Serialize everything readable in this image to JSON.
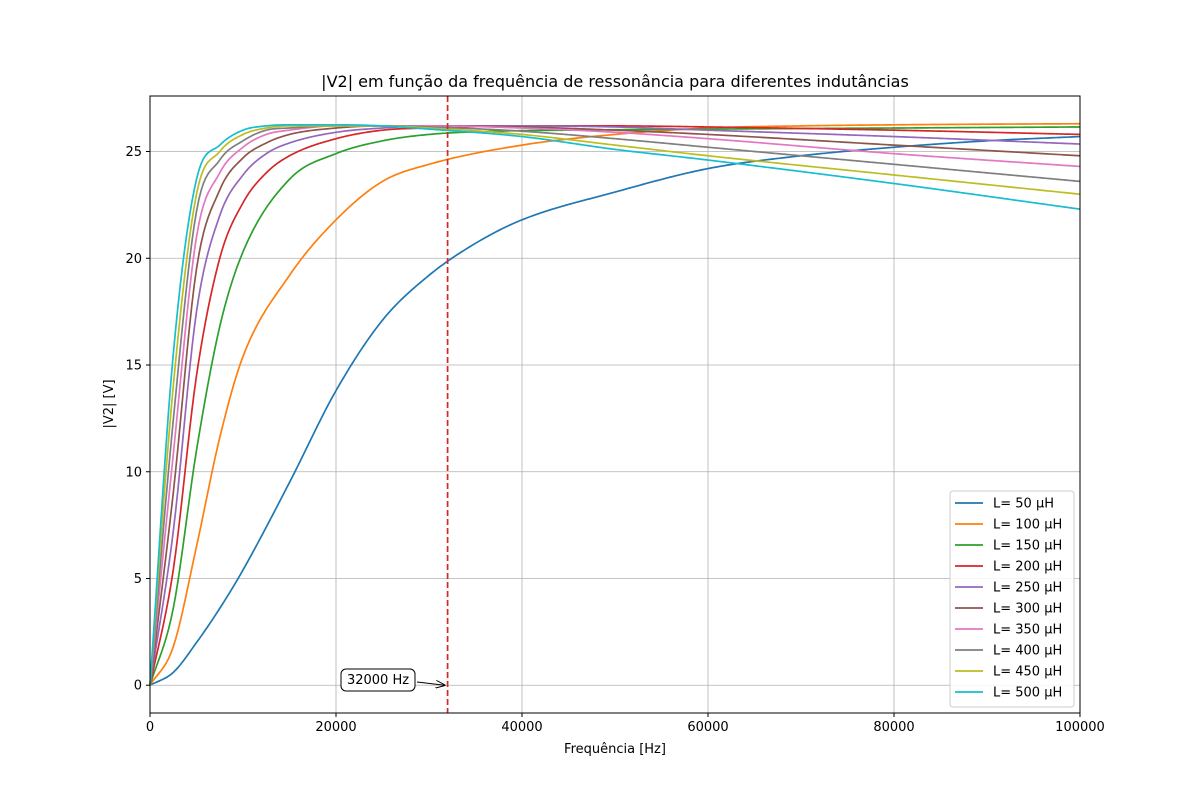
{
  "chart_data": {
    "type": "line",
    "title": "|V2| em função da frequência de ressonância para diferentes indutâncias",
    "xlabel": "Frequência [Hz]",
    "ylabel": "|V2| [V]",
    "xlim": [
      0,
      100000
    ],
    "ylim": [
      -1.3,
      27.6
    ],
    "xticks": [
      0,
      20000,
      40000,
      60000,
      80000,
      100000
    ],
    "xtick_labels": [
      "0",
      "20000",
      "40000",
      "60000",
      "80000",
      "100000"
    ],
    "yticks": [
      0,
      5,
      10,
      15,
      20,
      25
    ],
    "ytick_labels": [
      "0",
      "5",
      "10",
      "15",
      "20",
      "25"
    ],
    "grid": true,
    "legend_position": "lower-right",
    "vline": {
      "x": 32000,
      "color": "#d62728",
      "style": "dashed"
    },
    "annotation": {
      "text": "32000 Hz",
      "target": [
        32000,
        0
      ]
    },
    "series": [
      {
        "name": "L= 50 µH",
        "color": "#1f77b4",
        "x": [
          0,
          2500,
          5000,
          7500,
          10000,
          15000,
          20000,
          25000,
          30000,
          35000,
          40000,
          50000,
          60000,
          70000,
          80000,
          90000,
          100000
        ],
        "y": [
          0,
          0.6,
          2.0,
          3.6,
          5.4,
          9.5,
          13.8,
          17.1,
          19.2,
          20.7,
          21.8,
          23.1,
          24.2,
          24.8,
          25.2,
          25.5,
          25.7
        ]
      },
      {
        "name": "L= 100 µH",
        "color": "#ff7f0e",
        "x": [
          0,
          2500,
          5000,
          7500,
          10000,
          15000,
          20000,
          25000,
          30000,
          40000,
          50000,
          60000,
          70000,
          80000,
          90000,
          100000
        ],
        "y": [
          0,
          1.8,
          6.5,
          11.6,
          15.4,
          19.2,
          21.8,
          23.6,
          24.4,
          25.3,
          25.8,
          26.1,
          26.2,
          26.25,
          26.28,
          26.3
        ]
      },
      {
        "name": "L= 150 µH",
        "color": "#2ca02c",
        "x": [
          0,
          2500,
          5000,
          7500,
          10000,
          15000,
          20000,
          25000,
          30000,
          37000,
          45000,
          60000,
          80000,
          100000
        ],
        "y": [
          0,
          3.6,
          11.0,
          16.8,
          20.3,
          23.7,
          24.9,
          25.5,
          25.8,
          25.95,
          26.0,
          26.05,
          26.1,
          26.15
        ]
      },
      {
        "name": "L= 200 µH",
        "color": "#d62728",
        "x": [
          0,
          2500,
          5000,
          7500,
          10000,
          12500,
          15000,
          20000,
          25000,
          30000,
          40000,
          50000,
          60000,
          80000,
          100000
        ],
        "y": [
          0,
          5.4,
          14.5,
          20.0,
          22.6,
          24.0,
          24.8,
          25.6,
          26.0,
          26.1,
          26.2,
          26.2,
          26.15,
          26.0,
          25.8
        ]
      },
      {
        "name": "L= 250 µH",
        "color": "#9467bd",
        "x": [
          0,
          2500,
          5000,
          7500,
          10000,
          12500,
          15000,
          20000,
          25000,
          30000,
          40000,
          50000,
          60000,
          80000,
          100000
        ],
        "y": [
          0,
          7.2,
          17.5,
          22.0,
          23.9,
          24.9,
          25.4,
          25.9,
          26.1,
          26.2,
          26.2,
          26.15,
          26.0,
          25.7,
          25.35
        ]
      },
      {
        "name": "L= 300 µH",
        "color": "#8c564b",
        "x": [
          0,
          2500,
          5000,
          7500,
          10000,
          12500,
          15000,
          20000,
          25000,
          30000,
          40000,
          50000,
          60000,
          80000,
          100000
        ],
        "y": [
          0,
          9.0,
          19.5,
          23.2,
          24.7,
          25.4,
          25.8,
          26.1,
          26.2,
          26.2,
          26.15,
          26.0,
          25.8,
          25.3,
          24.8
        ]
      },
      {
        "name": "L= 350 µH",
        "color": "#e377c2",
        "x": [
          0,
          2500,
          5000,
          7500,
          10000,
          12500,
          15000,
          20000,
          25000,
          30000,
          40000,
          50000,
          60000,
          80000,
          100000
        ],
        "y": [
          0,
          10.8,
          21.0,
          24.0,
          25.2,
          25.8,
          26.0,
          26.2,
          26.2,
          26.2,
          26.1,
          25.9,
          25.6,
          24.9,
          24.3
        ]
      },
      {
        "name": "L= 400 µH",
        "color": "#7f7f7f",
        "x": [
          0,
          2500,
          5000,
          7500,
          10000,
          12500,
          15000,
          20000,
          25000,
          30000,
          40000,
          50000,
          60000,
          80000,
          100000
        ],
        "y": [
          0,
          12.4,
          22.2,
          24.6,
          25.5,
          26.0,
          26.1,
          26.2,
          26.2,
          26.15,
          25.95,
          25.6,
          25.2,
          24.4,
          23.6
        ]
      },
      {
        "name": "L= 450 µH",
        "color": "#bcbd22",
        "x": [
          0,
          2500,
          5000,
          7500,
          10000,
          12500,
          15000,
          20000,
          25000,
          30000,
          40000,
          50000,
          60000,
          80000,
          100000
        ],
        "y": [
          0,
          14.0,
          23.0,
          25.0,
          25.8,
          26.1,
          26.2,
          26.2,
          26.2,
          26.1,
          25.8,
          25.3,
          24.8,
          23.9,
          23.0
        ]
      },
      {
        "name": "L= 500 µH",
        "color": "#17becf",
        "x": [
          0,
          2500,
          5000,
          7500,
          10000,
          12500,
          15000,
          20000,
          25000,
          30000,
          40000,
          50000,
          60000,
          80000,
          100000
        ],
        "y": [
          0,
          15.5,
          23.7,
          25.3,
          26.0,
          26.2,
          26.25,
          26.25,
          26.2,
          26.05,
          25.7,
          25.1,
          24.6,
          23.5,
          22.3
        ]
      }
    ]
  }
}
